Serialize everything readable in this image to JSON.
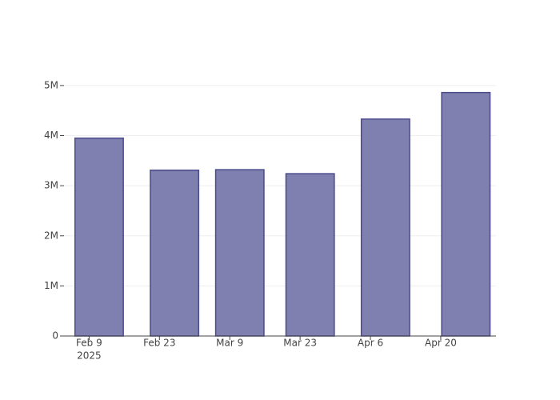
{
  "chart_data": {
    "type": "bar",
    "x": [
      "2025-02-11",
      "2025-02-26",
      "2025-03-11",
      "2025-03-25",
      "2025-04-09",
      "2025-04-25"
    ],
    "values": [
      3950000,
      3310000,
      3320000,
      3240000,
      4330000,
      4860000
    ],
    "color": "#7f7fb0",
    "edge_color": "#4b4b8c",
    "xlim": [
      "2025-02-04",
      "2025-05-01"
    ],
    "xticks": [
      {
        "value": "2025-02-09",
        "label": "Feb 9"
      },
      {
        "value": "2025-02-23",
        "label": "Feb 23"
      },
      {
        "value": "2025-03-09",
        "label": "Mar 9"
      },
      {
        "value": "2025-03-23",
        "label": "Mar 23"
      },
      {
        "value": "2025-04-06",
        "label": "Apr 6"
      },
      {
        "value": "2025-04-20",
        "label": "Apr 20"
      }
    ],
    "xtick_year": "2025",
    "ylim": [
      0,
      5110000
    ],
    "yticks": [
      0,
      {
        "value": 1000000,
        "label": "1M"
      },
      {
        "value": 2000000,
        "label": "2M"
      },
      {
        "value": 3000000,
        "label": "3M"
      },
      {
        "value": 4000000,
        "label": "4M"
      },
      {
        "value": 5000000,
        "label": "5M"
      }
    ],
    "grid": true
  }
}
